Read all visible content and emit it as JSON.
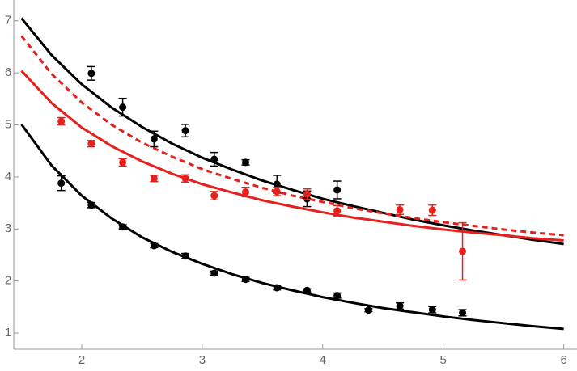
{
  "chart_data": {
    "type": "scatter",
    "xlim": [
      1.436,
      6.11
    ],
    "ylim": [
      0.69,
      7.4
    ],
    "xticks": [
      2,
      3,
      4,
      5,
      6
    ],
    "yticks": [
      1,
      2,
      3,
      4,
      5,
      6,
      7
    ],
    "series": [
      {
        "type": "line",
        "color": "#000000",
        "dashed": false,
        "x": [
          1.5,
          1.75,
          2,
          2.25,
          2.5,
          2.75,
          3,
          3.25,
          3.5,
          3.75,
          4,
          4.25,
          4.5,
          4.75,
          5,
          5.25,
          5.5,
          5.75,
          6
        ],
        "values": [
          7.05,
          6.34,
          5.78,
          5.33,
          4.96,
          4.64,
          4.37,
          4.14,
          3.93,
          3.75,
          3.58,
          3.44,
          3.31,
          3.18,
          3.07,
          2.97,
          2.88,
          2.79,
          2.71
        ]
      },
      {
        "type": "line",
        "color": "#e8201d",
        "dashed": true,
        "x": [
          1.5,
          1.75,
          2,
          2.25,
          2.5,
          2.75,
          3,
          3.25,
          3.5,
          3.75,
          4,
          4.25,
          4.5,
          4.75,
          5,
          5.25,
          5.5,
          5.75,
          6
        ],
        "values": [
          6.71,
          5.98,
          5.43,
          5.0,
          4.66,
          4.39,
          4.15,
          3.96,
          3.79,
          3.64,
          3.52,
          3.4,
          3.3,
          3.21,
          3.13,
          3.06,
          2.99,
          2.93,
          2.88
        ]
      },
      {
        "type": "line",
        "color": "#e8201d",
        "dashed": false,
        "x": [
          1.5,
          1.75,
          2,
          2.25,
          2.5,
          2.75,
          3,
          3.25,
          3.5,
          3.75,
          4,
          4.25,
          4.5,
          4.75,
          5,
          5.25,
          5.5,
          5.75,
          6
        ],
        "values": [
          6.04,
          5.42,
          4.95,
          4.59,
          4.3,
          4.06,
          3.86,
          3.7,
          3.55,
          3.43,
          3.32,
          3.22,
          3.14,
          3.06,
          2.99,
          2.93,
          2.88,
          2.82,
          2.78
        ]
      },
      {
        "type": "line",
        "color": "#000000",
        "dashed": false,
        "x": [
          1.5,
          1.75,
          2,
          2.25,
          2.5,
          2.75,
          3,
          3.25,
          3.5,
          3.75,
          4,
          4.25,
          4.5,
          4.75,
          5,
          5.25,
          5.5,
          5.75,
          6
        ],
        "values": [
          5.01,
          4.22,
          3.64,
          3.2,
          2.84,
          2.56,
          2.33,
          2.13,
          1.96,
          1.82,
          1.69,
          1.58,
          1.48,
          1.4,
          1.32,
          1.25,
          1.19,
          1.13,
          1.08
        ]
      },
      {
        "type": "points",
        "color": "#000000",
        "x": [
          2.08,
          2.34,
          2.6,
          2.86,
          3.1,
          3.36,
          3.62,
          3.87,
          4.12
        ],
        "values": [
          5.99,
          5.34,
          4.73,
          4.89,
          4.34,
          4.28,
          3.86,
          3.58,
          3.75
        ],
        "errors": [
          0.13,
          0.17,
          0.15,
          0.12,
          0.13,
          0.05,
          0.17,
          0.15,
          0.17
        ]
      },
      {
        "type": "points",
        "color": "#e8201d",
        "x": [
          1.83,
          2.08,
          2.34,
          2.6,
          2.86,
          3.1,
          3.36,
          3.62,
          3.87,
          4.12,
          4.64,
          4.91,
          5.16
        ],
        "values": [
          5.07,
          4.64,
          4.28,
          3.97,
          3.97,
          3.64,
          3.71,
          3.72,
          3.67,
          3.35,
          3.37,
          3.36,
          2.57
        ],
        "errors": [
          0.07,
          0.06,
          0.07,
          0.06,
          0.07,
          0.08,
          0.09,
          0.08,
          0.1,
          0.1,
          0.09,
          0.1,
          0.55
        ]
      },
      {
        "type": "points",
        "color": "#000000",
        "x": [
          1.83,
          2.08,
          2.34,
          2.6,
          2.86,
          3.1,
          3.36,
          3.62,
          3.87,
          4.12,
          4.38,
          4.64,
          4.91,
          5.16
        ],
        "values": [
          3.88,
          3.46,
          3.04,
          2.68,
          2.48,
          2.15,
          2.03,
          1.87,
          1.82,
          1.72,
          1.44,
          1.52,
          1.45,
          1.39
        ],
        "errors": [
          0.14,
          0.05,
          0.04,
          0.04,
          0.05,
          0.04,
          0.04,
          0.04,
          0.03,
          0.05,
          0.03,
          0.06,
          0.06,
          0.06
        ]
      }
    ]
  }
}
